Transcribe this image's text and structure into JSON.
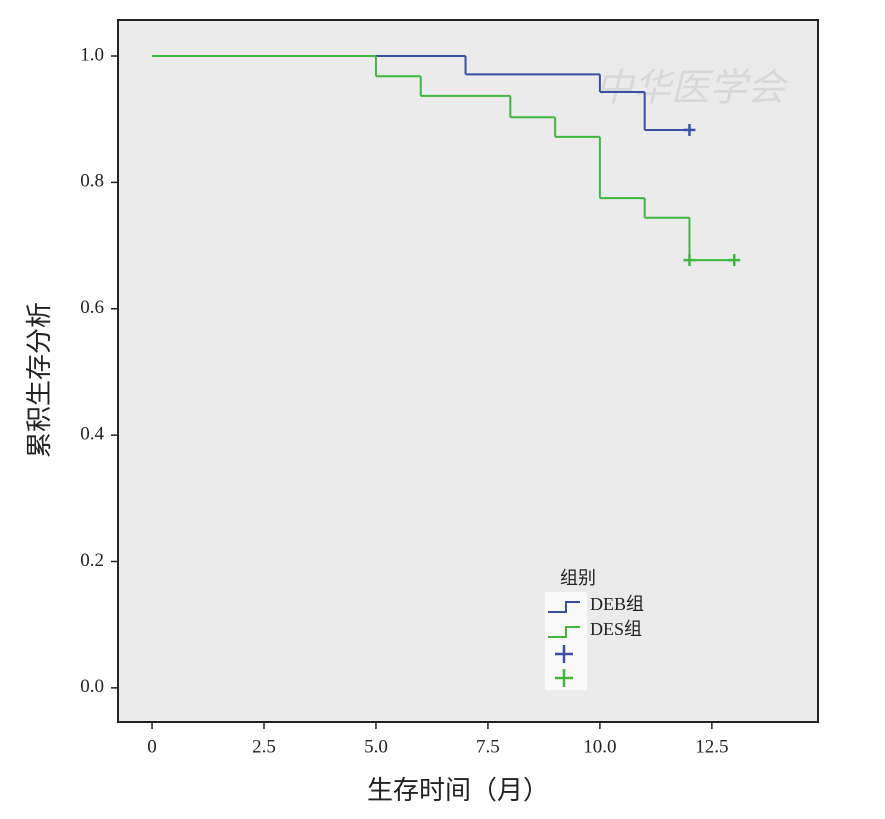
{
  "chart_data": {
    "type": "step",
    "watermark": "中华医学会",
    "y_label": "累积生存分析",
    "x_label": "生存时间（月）",
    "legend_title": "组别",
    "xlim": [
      -0.76,
      14.87
    ],
    "ylim": [
      -0.054,
      1.057
    ],
    "xticks": [
      0,
      2.5,
      {
        "value": 5,
        "label": "5.0"
      },
      7.5,
      {
        "value": 10,
        "label": "10.0"
      },
      12.5
    ],
    "yticks": [
      {
        "value": 0,
        "label": "0.0"
      },
      0.2,
      0.4,
      0.6,
      0.8,
      {
        "value": 1,
        "label": "1.0"
      }
    ],
    "series": [
      {
        "name": "DEB组",
        "color": "#3b4ea6",
        "x": [
          0,
          7,
          10,
          11,
          12
        ],
        "values": [
          1,
          0.971,
          0.943,
          0.883,
          0.883
        ],
        "censored_x": [
          12
        ],
        "censored_values": [
          0.883
        ]
      },
      {
        "name": "DES组",
        "color": "#3db83d",
        "x": [
          0,
          5,
          6,
          8,
          9,
          10,
          11,
          12,
          13
        ],
        "values": [
          1,
          0.968,
          0.937,
          0.903,
          0.872,
          0.775,
          0.744,
          0.677,
          0.677
        ],
        "censored_x": [
          12,
          13
        ],
        "censored_values": [
          0.677,
          0.677
        ]
      }
    ]
  }
}
